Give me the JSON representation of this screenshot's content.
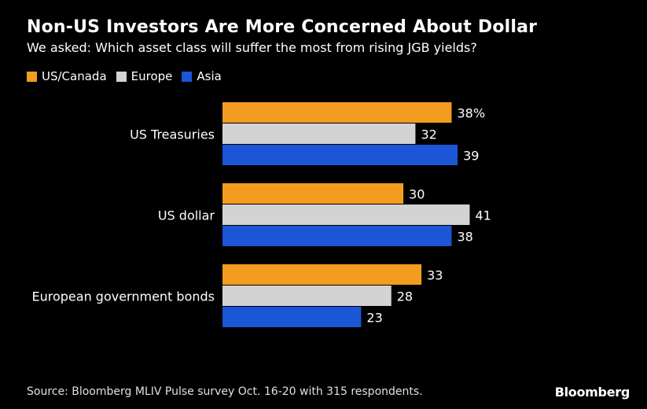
{
  "header": {
    "title": "Non-US Investors Are More Concerned About Dollar",
    "subtitle": "We asked: Which asset class will suffer the most from rising JGB yields?"
  },
  "chart_data": {
    "type": "bar",
    "orientation": "horizontal",
    "categories": [
      "US Treasuries",
      "US dollar",
      "European government bonds"
    ],
    "series": [
      {
        "name": "US/Canada",
        "color": "#f39c1f",
        "values": [
          38,
          30,
          33
        ]
      },
      {
        "name": "Europe",
        "color": "#d3d3d3",
        "values": [
          32,
          41,
          28
        ]
      },
      {
        "name": "Asia",
        "color": "#1a56d6",
        "values": [
          39,
          38,
          23
        ]
      }
    ],
    "data_labels": [
      [
        "38%",
        "32",
        "39"
      ],
      [
        "30",
        "41",
        "38"
      ],
      [
        "33",
        "28",
        "23"
      ]
    ],
    "legend_position": "top-left",
    "grid": false
  },
  "footer": {
    "source": "Source: Bloomberg MLIV Pulse survey Oct. 16-20 with 315 respondents.",
    "brand": "Bloomberg"
  }
}
